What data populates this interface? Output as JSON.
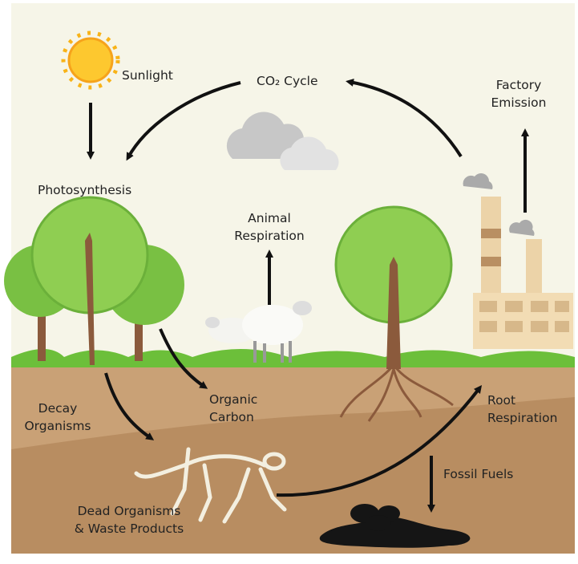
{
  "nodes": [
    {
      "lines": [
        "Sunlight"
      ]
    },
    {
      "lines": [
        "CO₂ Cycle"
      ]
    },
    {
      "lines": [
        "Factory",
        "Emission"
      ]
    },
    {
      "lines": [
        "Photosynthesis"
      ]
    },
    {
      "lines": [
        "Animal",
        "Respiration"
      ]
    },
    {
      "lines": [
        "Organic",
        "Carbon"
      ]
    },
    {
      "lines": [
        "Decay",
        "Organisms"
      ]
    },
    {
      "lines": [
        "Root",
        "Respiration"
      ]
    },
    {
      "lines": [
        "Fossil Fuels"
      ]
    },
    {
      "lines": [
        "Dead Organisms",
        "& Waste Products"
      ]
    }
  ]
}
